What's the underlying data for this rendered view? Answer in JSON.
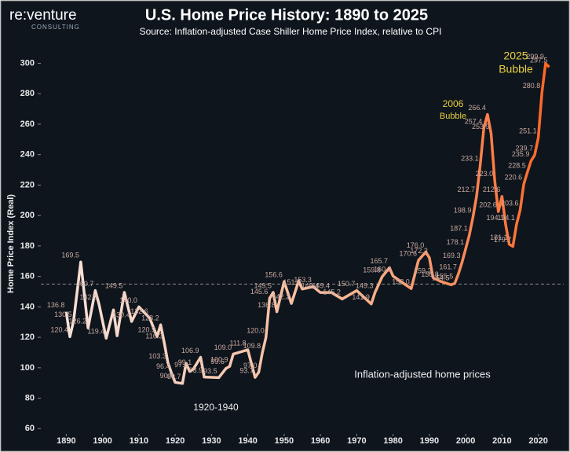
{
  "logo": {
    "name": "re:venture",
    "sub": "CONSULTING"
  },
  "chart_data": {
    "type": "line",
    "title": "U.S. Home Price History: 1890 to 2025",
    "subtitle": "Source: Inflation-adjusted Case Shiller Home Price Index, relative to CPI",
    "y_label": "Home Price Index (Real)",
    "annotations": {
      "bubble_2006": [
        "2006",
        "Bubble"
      ],
      "bubble_2025": [
        "2025",
        "Bubble"
      ],
      "depression": "1920-1940",
      "series_note": "Inflation-adjusted home prices"
    },
    "reference_line": 155,
    "xlim": [
      1883,
      2027
    ],
    "xticks": [
      1890,
      1900,
      1910,
      1920,
      1930,
      1940,
      1950,
      1960,
      1970,
      1980,
      1990,
      2000,
      2010,
      2020
    ],
    "ylim": [
      55,
      308
    ],
    "yticks": [
      60,
      80,
      100,
      120,
      140,
      160,
      180,
      200,
      220,
      240,
      260,
      280,
      300
    ],
    "series": [
      {
        "name": "Inflation-adjusted home prices",
        "color": "#ff7a3c",
        "x": [
          1890,
          1891,
          1892,
          1894,
          1896,
          1898,
          1899,
          1901,
          1903,
          1904,
          1906,
          1908,
          1910,
          1913,
          1915,
          1916,
          1917,
          1918,
          1919,
          1920,
          1922,
          1923,
          1924,
          1925,
          1927,
          1928,
          1932,
          1934,
          1935,
          1936,
          1940,
          1942,
          1943,
          1944,
          1945,
          1946,
          1947,
          1948,
          1950,
          1952,
          1954,
          1955,
          1958,
          1960,
          1963,
          1966,
          1970,
          1974,
          1975,
          1977,
          1979,
          1980,
          1985,
          1987,
          1989,
          1990,
          1991,
          1993,
          1996,
          1997,
          1998,
          1999,
          2000,
          2001,
          2002,
          2003,
          2004,
          2005,
          2006,
          2007,
          2008,
          2009,
          2010,
          2011,
          2012,
          2013,
          2014,
          2015,
          2016,
          2017,
          2018,
          2019,
          2020,
          2021,
          2022,
          2023
        ],
        "values": [
          136.8,
          120.4,
          130.5,
          169.5,
          126.2,
          150.7,
          142.0,
          119.4,
          138,
          121,
          149.5,
          130.4,
          140.0,
          132.6,
          120.5,
          128.2,
          116.3,
          103.3,
          96.4,
          90.4,
          89.7,
          103,
          97.6,
          99.1,
          106.9,
          93.9,
          93.5,
          99.6,
          100.9,
          109.0,
          111.8,
          93.7,
          97.0,
          109.8,
          120.0,
          145.6,
          149.5,
          136.8,
          156.6,
          142.2,
          157,
          151.7,
          153.3,
          149.4,
          149.4,
          145.2,
          150.7,
          141.9,
          149.3,
          159.8,
          165.7,
          160.2,
          152.0,
          170.6,
          176.0,
          172.3,
          159.2,
          156.8,
          154.5,
          155.5,
          161.7,
          169.3,
          178.1,
          187.1,
          198.9,
          212.7,
          233.1,
          257.4,
          266.4,
          253.9,
          223.0,
          202.6,
          212.6,
          194.1,
          181.1,
          179.7,
          194.1,
          203.6,
          220.6,
          228.5,
          235.9,
          239.7,
          251.1,
          280.8,
          299.9,
          297.5
        ],
        "value_labels": [
          "136.8",
          "120.4",
          "130.5",
          "169.5",
          "126.2",
          "150.7",
          "142.0",
          "119.4",
          null,
          null,
          "149.5",
          "130.4",
          "140.0",
          "132.6",
          "120.5",
          "128.2",
          "116.3",
          "103.3",
          "96.4",
          "90.4",
          "89.7",
          null,
          "97.6",
          "99.1",
          "106.9",
          "93.9",
          "93.5",
          "99.6",
          "100.9",
          "109.0",
          "111.8",
          "93.7",
          "97.0",
          "109.8",
          "120.0",
          "145.6",
          "149.5",
          "136.8",
          "156.6",
          "142.2",
          null,
          "151.7",
          "153.3",
          "149.4",
          "149.4",
          "145.2",
          "150.7",
          "141.9",
          "149.3",
          "159.8",
          "165.7",
          "160.2",
          "152.0",
          "170.6",
          "176.0",
          "172.3",
          "159.2",
          "156.8",
          "154.5",
          "155.5",
          "161.7",
          "169.3",
          "178.1",
          "187.1",
          "198.9",
          "212.7",
          "233.1",
          "257.4",
          "266.4",
          "253.9",
          "223.0",
          "202.6",
          "212.6",
          "194.1",
          "181.1",
          "179.7",
          "194.1",
          "203.6",
          "220.6",
          "228.5",
          "235.9",
          "239.7",
          "251.1",
          "280.8",
          "299.9",
          "297.5"
        ]
      }
    ]
  }
}
